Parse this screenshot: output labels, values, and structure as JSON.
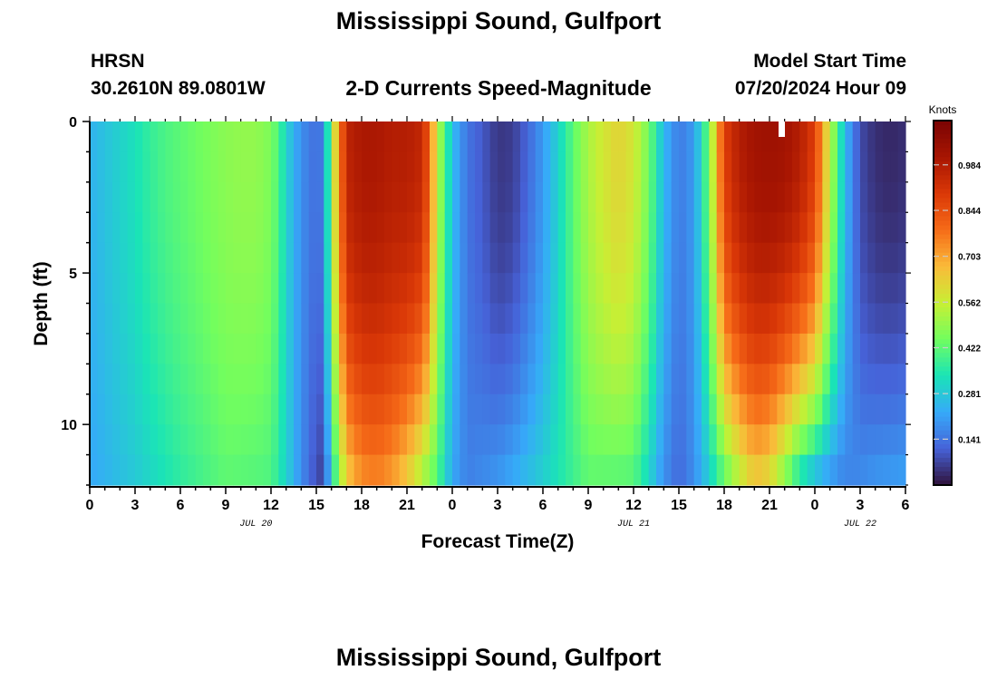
{
  "page": {
    "title": "Mississippi Sound, Gulfport",
    "footer_title": "Mississippi Sound, Gulfport",
    "station_code": "HRSN",
    "coordinates": "30.2610N  89.0801W",
    "subtitle": "2-D Currents Speed-Magnitude",
    "model_start_label": "Model Start Time",
    "model_start_value": "07/20/2024 Hour 09"
  },
  "chart_data": {
    "type": "heatmap",
    "xlabel": "Forecast Time(Z)",
    "ylabel": "Depth (ft)",
    "x_range_hours": [
      0,
      54
    ],
    "y_range_ft": [
      0,
      12
    ],
    "x_tick_labels": [
      "0",
      "3",
      "6",
      "9",
      "12",
      "15",
      "18",
      "21",
      "0",
      "3",
      "6",
      "9",
      "12",
      "15",
      "18",
      "21",
      "0",
      "3",
      "6"
    ],
    "x_tick_hours": [
      0,
      3,
      6,
      9,
      12,
      15,
      18,
      21,
      24,
      27,
      30,
      33,
      36,
      39,
      42,
      45,
      48,
      51,
      54
    ],
    "y_tick_labels": [
      "0",
      "5",
      "10"
    ],
    "y_tick_values": [
      0,
      5,
      10
    ],
    "date_labels": [
      {
        "text": "JUL 20",
        "hour": 11
      },
      {
        "text": "JUL 21",
        "hour": 36
      },
      {
        "text": "JUL 22",
        "hour": 51
      }
    ],
    "colorbar": {
      "unit": "Knots",
      "min": 0.0,
      "max": 1.12,
      "tick_labels": [
        "0.984",
        "0.844",
        "0.703",
        "0.562",
        "0.422",
        "0.281",
        "0.141"
      ],
      "tick_values": [
        0.984,
        0.844,
        0.703,
        0.562,
        0.422,
        0.281,
        0.141
      ]
    },
    "surface_speed_profile": {
      "hours": [
        0,
        1,
        2,
        3,
        4,
        5,
        6,
        7,
        8,
        9,
        10,
        11,
        12,
        12.5,
        13,
        14,
        15,
        15.5,
        16,
        17,
        18,
        19,
        20,
        21,
        22,
        22.5,
        23,
        24,
        25,
        26,
        27,
        28,
        29,
        30,
        31,
        32,
        33,
        34,
        35,
        36,
        37,
        38,
        39,
        40,
        41,
        42,
        43,
        44,
        45,
        46,
        47,
        48,
        49,
        50,
        51,
        52,
        53,
        54
      ],
      "knots": [
        0.24,
        0.27,
        0.3,
        0.33,
        0.37,
        0.4,
        0.42,
        0.44,
        0.46,
        0.48,
        0.49,
        0.49,
        0.46,
        0.4,
        0.3,
        0.18,
        0.13,
        0.16,
        0.5,
        0.96,
        1.0,
        1.0,
        0.98,
        0.98,
        0.95,
        0.8,
        0.55,
        0.26,
        0.14,
        0.1,
        0.05,
        0.06,
        0.12,
        0.2,
        0.3,
        0.42,
        0.52,
        0.58,
        0.62,
        0.58,
        0.45,
        0.25,
        0.15,
        0.2,
        0.45,
        0.88,
        0.98,
        1.02,
        1.03,
        1.02,
        0.98,
        0.88,
        0.55,
        0.25,
        0.08,
        0.04,
        0.03,
        0.04
      ]
    },
    "bottom_speed_profile": {
      "hours": [
        0,
        3,
        6,
        9,
        12,
        13,
        14,
        15,
        15.5,
        16,
        17,
        18,
        19,
        20,
        21,
        22,
        23,
        24,
        25,
        27,
        30,
        33,
        36,
        37,
        38,
        39,
        40,
        41,
        42,
        43,
        44,
        45,
        46,
        47,
        48,
        49,
        50,
        51,
        52,
        54
      ],
      "knots": [
        0.22,
        0.28,
        0.36,
        0.42,
        0.4,
        0.3,
        0.18,
        0.08,
        0.06,
        0.3,
        0.62,
        0.72,
        0.74,
        0.7,
        0.62,
        0.5,
        0.4,
        0.22,
        0.16,
        0.2,
        0.3,
        0.42,
        0.4,
        0.3,
        0.18,
        0.12,
        0.18,
        0.28,
        0.4,
        0.52,
        0.62,
        0.58,
        0.44,
        0.3,
        0.22,
        0.18,
        0.16,
        0.18,
        0.2,
        0.22
      ]
    }
  }
}
